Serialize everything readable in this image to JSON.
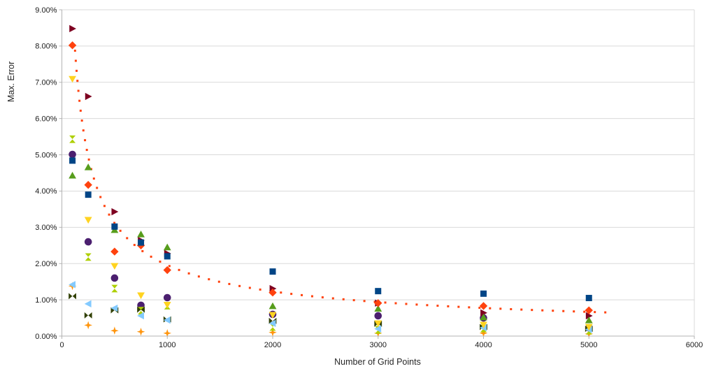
{
  "chart_data": {
    "type": "scatter",
    "title": "",
    "xlabel": "Number of Grid Points",
    "ylabel": "Max. Error",
    "xlim": [
      0,
      6000
    ],
    "ylim": [
      0,
      9
    ],
    "grid": "horizontal",
    "legend": "none",
    "background": "#ffffff",
    "grid_color": "#d9d9d9",
    "axis_color": "#b3b3b3",
    "x_ticks": [
      0,
      1000,
      2000,
      3000,
      4000,
      5000,
      6000
    ],
    "x_tick_labels": [
      "0",
      "1000",
      "2000",
      "3000",
      "4000",
      "5000",
      "6000"
    ],
    "y_ticks": [
      0,
      1,
      2,
      3,
      4,
      5,
      6,
      7,
      8,
      9
    ],
    "y_tick_labels": [
      "0.00%",
      "1.00%",
      "2.00%",
      "3.00%",
      "4.00%",
      "5.00%",
      "6.00%",
      "7.00%",
      "8.00%",
      "9.00%"
    ],
    "x": [
      100,
      250,
      500,
      750,
      1000,
      2000,
      3000,
      4000,
      5000
    ],
    "y_unit": "percent",
    "series": [
      {
        "name": "navy-squares",
        "marker": "square",
        "color": "#004586",
        "values": [
          4.84,
          3.9,
          3.02,
          2.58,
          2.2,
          1.78,
          1.24,
          1.17,
          1.05
        ]
      },
      {
        "name": "red-diamonds",
        "marker": "diamond",
        "color": "#FF420E",
        "values": [
          8.02,
          4.17,
          2.33,
          2.5,
          1.82,
          1.2,
          0.91,
          0.83,
          0.71
        ]
      },
      {
        "name": "yellow-down-triangles",
        "marker": "triangle-down",
        "color": "#FFD320",
        "values": [
          7.09,
          3.2,
          1.93,
          1.12,
          0.86,
          0.58,
          0.35,
          0.31,
          0.25
        ]
      },
      {
        "name": "green-up-triangles",
        "marker": "triangle-up",
        "color": "#579D1C",
        "values": [
          4.43,
          4.66,
          2.93,
          2.81,
          2.45,
          0.83,
          0.76,
          0.52,
          0.44
        ]
      },
      {
        "name": "darkred-right-triangles",
        "marker": "triangle-right",
        "color": "#7E0021",
        "values": [
          8.48,
          6.61,
          3.43,
          2.64,
          2.28,
          1.31,
          0.91,
          0.64,
          0.56
        ]
      },
      {
        "name": "lightblue-left-triangles",
        "marker": "triangle-left",
        "color": "#83CAFF",
        "values": [
          1.42,
          0.89,
          0.77,
          0.56,
          0.44,
          0.35,
          0.2,
          0.23,
          0.18
        ]
      },
      {
        "name": "olive-bowties",
        "marker": "bowtie",
        "color": "#314004",
        "values": [
          1.1,
          0.57,
          0.71,
          0.73,
          0.46,
          0.42,
          0.34,
          0.25,
          0.2
        ]
      },
      {
        "name": "yellowgreen-hourglasses",
        "marker": "hourglass",
        "color": "#AECF00",
        "values": [
          5.43,
          2.18,
          1.31,
          0.7,
          0.84,
          0.25,
          0.17,
          0.21,
          0.15
        ]
      },
      {
        "name": "purple-circles",
        "marker": "circle",
        "color": "#4B1F6F",
        "values": [
          5.01,
          2.6,
          1.6,
          0.85,
          1.06,
          0.6,
          0.56,
          0.5,
          0.23
        ]
      },
      {
        "name": "orange-stars",
        "marker": "star4",
        "color": "#FF950E",
        "values": [
          1.38,
          0.3,
          0.15,
          0.12,
          0.08,
          0.1,
          0.08,
          0.08,
          0.06
        ]
      }
    ],
    "trendline": {
      "style": "dotted",
      "color": "#FF420E",
      "model": "power",
      "a": 199,
      "b": -0.669,
      "x_start": 125,
      "x_end": 5230
    }
  }
}
